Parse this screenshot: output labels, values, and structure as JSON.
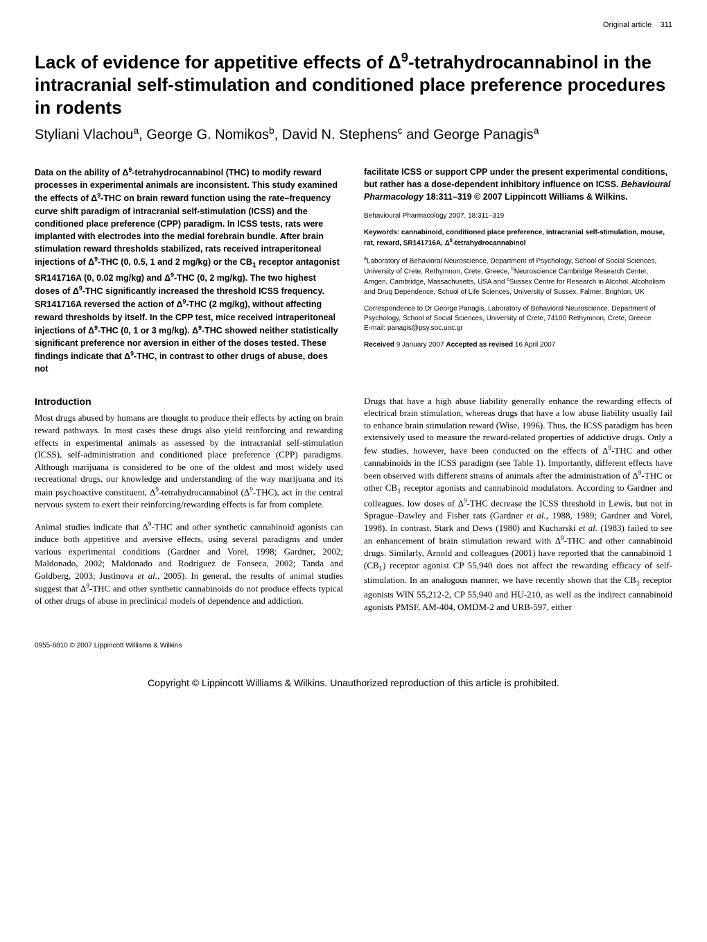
{
  "header": {
    "running_head": "Original article",
    "page_number": "311"
  },
  "title_html": "Lack of evidence for appetitive effects of Δ<span class=\"sup\">9</span>-tetrahydrocannabinol in the intracranial self-stimulation and conditioned place preference procedures in rodents",
  "authors_html": "Styliani Vlachou<span class=\"sup\">a</span>, George G. Nomikos<span class=\"sup\">b</span>, David N. Stephens<span class=\"sup\">c</span> and George Panagis<span class=\"sup\">a</span>",
  "abstract": {
    "left_html": "Data on the ability of Δ<span class=\"sup\">9</span>-tetrahydrocannabinol (THC) to modify reward processes in experimental animals are inconsistent. This study examined the effects of Δ<span class=\"sup\">9</span>-THC on brain reward function using the rate–frequency curve shift paradigm of intracranial self-stimulation (ICSS) and the conditioned place preference (CPP) paradigm. In ICSS tests, rats were implanted with electrodes into the medial forebrain bundle. After brain stimulation reward thresholds stabilized, rats received intraperitoneal injections of Δ<span class=\"sup\">9</span>-THC (0, 0.5, 1 and 2 mg/kg) or the CB<sub>1</sub> receptor antagonist SR141716A (0, 0.02 mg/kg) and Δ<span class=\"sup\">9</span>-THC (0, 2 mg/kg). The two highest doses of Δ<span class=\"sup\">9</span>-THC significantly increased the threshold ICSS frequency. SR141716A reversed the action of Δ<span class=\"sup\">9</span>-THC (2 mg/kg), without affecting reward thresholds by itself. In the CPP test, mice received intraperitoneal injections of Δ<span class=\"sup\">9</span>-THC (0, 1 or 3 mg/kg). Δ<span class=\"sup\">9</span>-THC showed neither statistically significant preference nor aversion in either of the doses tested. These findings indicate that Δ<span class=\"sup\">9</span>-THC, in contrast to other drugs of abuse, does not",
    "right_html": "facilitate ICSS or support CPP under the present experimental conditions, but rather has a dose-dependent inhibitory influence on ICSS. <i>Behavioural Pharmacology</i> 18:311–319 © 2007 Lippincott Williams & Wilkins."
  },
  "meta": {
    "journal_line": "Behavioural Pharmacology 2007, 18:311–319",
    "keywords_html": "Keywords: cannabinoid, conditioned place preference, intracranial self-stimulation, mouse, rat, reward, SR141716A, Δ<span class=\"sup\">9</span>-tetrahydrocannabinol",
    "affiliations_html": "<span class=\"sup\">a</span>Laboratory of Behavioral Neuroscience, Department of Psychology, School of Social Sciences, University of Crete, Rethymnon, Crete, Greece, <span class=\"sup\">b</span>Neuroscience Cambridge Research Center, Amgen, Cambridge, Massachusetts, USA and <span class=\"sup\">c</span>Sussex Centre for Research in Alcohol, Alcoholism and Drug Dependence, School of Life Sciences, University of Sussex, Falmer, Brighton, UK",
    "correspondence": "Correspondence to Dr George Panagis, Laboratory of Behavioral Neuroscience, Department of Psychology, School of Social Sciences, University of Crete, 74100 Rethymnon, Crete, Greece",
    "email": "E-mail: panagis@psy.soc.uoc.gr",
    "received_html": "<b>Received</b> 9 January 2007 <b>Accepted as revised</b> 16 April 2007"
  },
  "intro": {
    "heading": "Introduction",
    "left_paras_html": [
      "Most drugs abused by humans are thought to produce their effects by acting on brain reward pathways. In most cases these drugs also yield reinforcing and rewarding effects in experimental animals as assessed by the intracranial self-stimulation (ICSS), self-administration and conditioned place preference (CPP) paradigms. Although marijuana is considered to be one of the oldest and most widely used recreational drugs, our knowledge and understanding of the way marijuana and its main psychoactive constituent, Δ<span class=\"sup\">9</span>-tetrahydrocannabinol (Δ<span class=\"sup\">9</span>-THC), act in the central nervous system to exert their reinforcing/rewarding effects is far from complete.",
      "Animal studies indicate that Δ<span class=\"sup\">9</span>-THC and other synthetic cannabinoid agonists can induce both appetitive and aversive effects, using several paradigms and under various experimental conditions (Gardner and Vorel, 1998; Gardner, 2002; Maldonado, 2002; Maldonado and Rodriguez de Fonseca, 2002; Tanda and Goldberg, 2003; Justinova <i>et al.</i>, 2005). In general, the results of animal studies suggest that Δ<span class=\"sup\">9</span>-THC and other synthetic cannabinoids do not produce effects typical of other drugs of abuse in preclinical models of dependence and addiction."
    ],
    "right_paras_html": [
      "Drugs that have a high abuse liability generally enhance the rewarding effects of electrical brain stimulation, whereas drugs that have a low abuse liability usually fail to enhance brain stimulation reward (Wise, 1996). Thus, the ICSS paradigm has been extensively used to measure the reward-related properties of addictive drugs. Only a few studies, however, have been conducted on the effects of Δ<span class=\"sup\">9</span>-THC and other cannabinoids in the ICSS paradigm (see Table 1). Importantly, different effects have been observed with different strains of animals after the administration of Δ<span class=\"sup\">9</span>-THC or other CB<sub>1</sub> receptor agonists and cannabinoid modulators. According to Gardner and colleagues, low doses of Δ<span class=\"sup\">9</span>-THC decrease the ICSS threshold in Lewis, but not in Sprague–Dawley and Fisher rats (Gardner <i>et al.</i>, 1988, 1989; Gardner and Vorel, 1998). In contrast, Stark and Dews (1980) and Kucharski <i>et al.</i> (1983) failed to see an enhancement of brain stimulation reward with Δ<span class=\"sup\">9</span>-THC and other cannabinoid drugs. Similarly, Arnold and colleagues (2001) have reported that the cannabinoid 1 (CB<sub>1</sub>) receptor agonist CP 55,940 does not affect the rewarding efficacy of self-stimulation. In an analogous manner, we have recently shown that the CB<sub>1</sub> receptor agonists WIN 55,212-2, CP 55,940 and HU-210, as well as the indirect cannabinoid agonists PMSF, AM-404, OMDM-2 and URB-597, either"
    ]
  },
  "footer": {
    "issn_line": "0955-8810 © 2007 Lippincott Williams & Wilkins",
    "copyright_bar": "Copyright © Lippincott Williams & Wilkins. Unauthorized reproduction of this article is prohibited."
  }
}
